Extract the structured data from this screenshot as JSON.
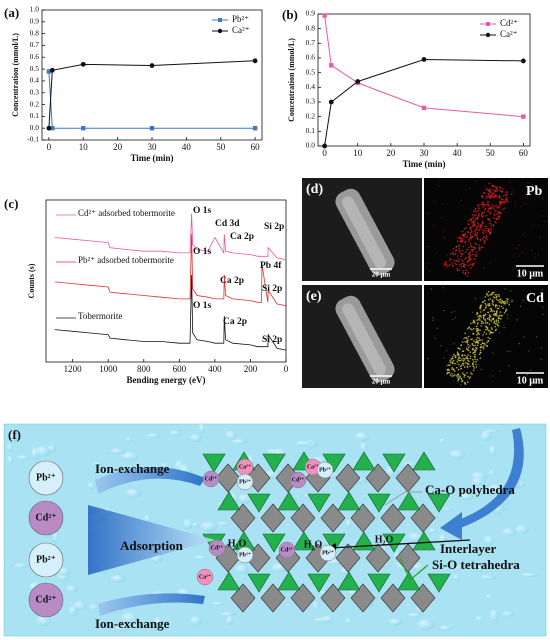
{
  "chart_data": [
    {
      "type": "line",
      "panel_label": "(a)",
      "x_label": "Time (min)",
      "y_label": "Concentration (mmol/L)",
      "x": [
        0,
        1,
        10,
        30,
        60
      ],
      "xlim": [
        -2,
        62
      ],
      "xticks": [
        0,
        10,
        20,
        30,
        40,
        50,
        60
      ],
      "ylim": [
        -0.1,
        1.0
      ],
      "yticks": [
        -0.1,
        {
          "value": 0,
          "label": "0.0"
        },
        0.1,
        0.2,
        0.3,
        0.4,
        0.5,
        0.6,
        0.7,
        0.8,
        0.9,
        {
          "value": 1,
          "label": "1.0"
        }
      ],
      "legend": "upper right",
      "series": [
        {
          "name": "Pb²⁺",
          "color": "#3a78c8",
          "marker": "square",
          "values": [
            0.48,
            0,
            0,
            0,
            0
          ]
        },
        {
          "name": "Ca²⁺",
          "color": "#111111",
          "marker": "circle",
          "values": [
            0,
            0.49,
            0.54,
            0.53,
            0.57
          ]
        }
      ]
    },
    {
      "type": "line",
      "panel_label": "(b)",
      "x_label": "Time (min)",
      "y_label": "Concentration (mmol/L)",
      "x": [
        0,
        2,
        10,
        30,
        60
      ],
      "xlim": [
        -2,
        62
      ],
      "xticks": [
        0,
        10,
        20,
        30,
        40,
        50,
        60
      ],
      "ylim": [
        0,
        0.9
      ],
      "yticks": [
        {
          "value": 0,
          "label": "0.0"
        },
        0.1,
        0.2,
        0.3,
        0.4,
        0.5,
        0.6,
        0.7,
        0.8,
        0.9
      ],
      "legend": "upper right",
      "series": [
        {
          "name": "Cd²⁺",
          "color": "#e85aa8",
          "marker": "square",
          "values": [
            0.89,
            0.55,
            0.43,
            0.26,
            0.2
          ]
        },
        {
          "name": "Ca²⁺",
          "color": "#111111",
          "marker": "circle",
          "values": [
            0,
            0.3,
            0.44,
            0.59,
            0.58
          ]
        }
      ]
    },
    {
      "type": "spectrum",
      "panel_label": "(c)",
      "x_label": "Bending energy (eV)",
      "y_label": "Counts (s)",
      "x": [
        1300,
        1200,
        1100,
        1000,
        990,
        900,
        800,
        700,
        600,
        540,
        531,
        525,
        500,
        440,
        400,
        350,
        347,
        340,
        300,
        200,
        160,
        138,
        135,
        102,
        100,
        50,
        0
      ],
      "xlim": [
        1350,
        0
      ],
      "xticks": [
        1200,
        1000,
        800,
        600,
        400,
        200,
        0
      ],
      "ylim": [
        5,
        100
      ],
      "series": [
        {
          "name": "Cd²⁺ adsorbed tobermorite",
          "color": "#e85aa8",
          "values": [
            78,
            77,
            76,
            75,
            72,
            71,
            70,
            70,
            69,
            69,
            92,
            74,
            71,
            70,
            78,
            69,
            80,
            70,
            69,
            68,
            67,
            67,
            67,
            67,
            72,
            66,
            65
          ]
        },
        {
          "name": "Pb²⁺ adsorbed tobermorite",
          "color": "#e03030",
          "values": [
            52,
            51,
            50,
            49,
            46,
            45,
            44,
            43,
            42,
            42,
            80,
            48,
            44,
            43,
            42,
            42,
            56,
            44,
            42,
            41,
            40,
            40,
            62,
            40,
            47,
            39,
            38
          ]
        },
        {
          "name": "Tobermorite",
          "color": "#111111",
          "values": [
            24,
            23,
            22,
            21,
            19,
            18,
            17,
            17,
            16,
            16,
            56,
            22,
            18,
            17,
            16,
            16,
            32,
            18,
            16,
            15,
            14,
            14,
            14,
            14,
            21,
            13,
            12
          ]
        }
      ],
      "annotations": [
        "O 1s",
        "Cd 3d",
        "Ca 2p",
        "Si 2p",
        "O 1s",
        "Ca 2p",
        "Pb 4f",
        "Si 2p",
        "O 1s",
        "Ca 2p",
        "Si 2p"
      ]
    }
  ],
  "images": [
    {
      "label": "(d)",
      "element": "Pb",
      "scale_left": "20 μm",
      "scale_right": "10 μm"
    },
    {
      "label": "(e)",
      "element": "Cd",
      "scale_left": "20 μm",
      "scale_right": "10 μm"
    }
  ],
  "diagram": {
    "label": "(f)",
    "processes": [
      "Ion-exchange",
      "Adsorption",
      "Ion-exchange"
    ],
    "ions": [
      "Pb²⁺",
      "Cd²⁺",
      "Pb²⁺",
      "Cd²⁺"
    ],
    "small_ions": [
      "Ca²⁺",
      "Cd²⁺",
      "Pb²⁺",
      "Ca²⁺",
      "Cd²⁺",
      "Pb²⁺",
      "Cd²⁺",
      "Pb²⁺",
      "Ca²⁺",
      "Cd²⁺",
      "Pb²⁺"
    ],
    "water": [
      "H₂O",
      "H₂O",
      "H₂O"
    ],
    "callouts": [
      "Ca-O polyhedra",
      "Interlayer",
      "Si-O tetrahedra"
    ]
  }
}
